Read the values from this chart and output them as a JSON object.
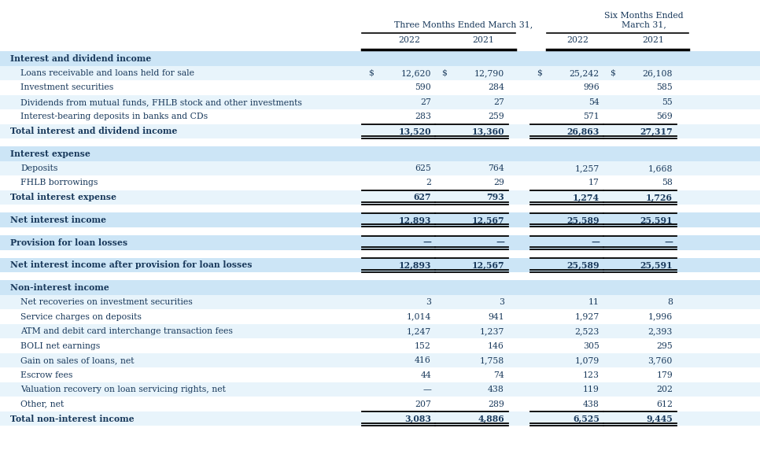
{
  "rows": [
    {
      "label": "Interest and dividend income",
      "values": [
        "",
        "",
        "",
        ""
      ],
      "style": "section_header",
      "bg": "#cce5f6"
    },
    {
      "label": "Loans receivable and loans held for sale",
      "values": [
        "12,620",
        "12,790",
        "25,242",
        "26,108"
      ],
      "dollar": [
        true,
        true,
        true,
        true
      ],
      "style": "data",
      "bg": "#e8f4fb"
    },
    {
      "label": "Investment securities",
      "values": [
        "590",
        "284",
        "996",
        "585"
      ],
      "dollar": [
        false,
        false,
        false,
        false
      ],
      "style": "data",
      "bg": "#ffffff"
    },
    {
      "label": "Dividends from mutual funds, FHLB stock and other investments",
      "values": [
        "27",
        "27",
        "54",
        "55"
      ],
      "dollar": [
        false,
        false,
        false,
        false
      ],
      "style": "data",
      "bg": "#e8f4fb"
    },
    {
      "label": "Interest-bearing deposits in banks and CDs",
      "values": [
        "283",
        "259",
        "571",
        "569"
      ],
      "dollar": [
        false,
        false,
        false,
        false
      ],
      "style": "data",
      "bg": "#ffffff"
    },
    {
      "label": "Total interest and dividend income",
      "values": [
        "13,520",
        "13,360",
        "26,863",
        "27,317"
      ],
      "dollar": [
        false,
        false,
        false,
        false
      ],
      "style": "total",
      "bg": "#e8f4fb"
    },
    {
      "label": "",
      "values": [
        "",
        "",
        "",
        ""
      ],
      "style": "spacer",
      "bg": "#ffffff"
    },
    {
      "label": "Interest expense",
      "values": [
        "",
        "",
        "",
        ""
      ],
      "style": "section_header",
      "bg": "#cce5f6"
    },
    {
      "label": "Deposits",
      "values": [
        "625",
        "764",
        "1,257",
        "1,668"
      ],
      "dollar": [
        false,
        false,
        false,
        false
      ],
      "style": "data",
      "bg": "#e8f4fb"
    },
    {
      "label": "FHLB borrowings",
      "values": [
        "2",
        "29",
        "17",
        "58"
      ],
      "dollar": [
        false,
        false,
        false,
        false
      ],
      "style": "data",
      "bg": "#ffffff"
    },
    {
      "label": "Total interest expense",
      "values": [
        "627",
        "793",
        "1,274",
        "1,726"
      ],
      "dollar": [
        false,
        false,
        false,
        false
      ],
      "style": "total",
      "bg": "#e8f4fb"
    },
    {
      "label": "",
      "values": [
        "",
        "",
        "",
        ""
      ],
      "style": "spacer",
      "bg": "#ffffff"
    },
    {
      "label": "Net interest income",
      "values": [
        "12,893",
        "12,567",
        "25,589",
        "25,591"
      ],
      "dollar": [
        false,
        false,
        false,
        false
      ],
      "style": "subtotal",
      "bg": "#cce5f6"
    },
    {
      "label": "",
      "values": [
        "",
        "",
        "",
        ""
      ],
      "style": "spacer",
      "bg": "#ffffff"
    },
    {
      "label": "Provision for loan losses",
      "values": [
        "—",
        "—",
        "—",
        "—"
      ],
      "dollar": [
        false,
        false,
        false,
        false
      ],
      "style": "subtotal",
      "bg": "#cce5f6"
    },
    {
      "label": "",
      "values": [
        "",
        "",
        "",
        ""
      ],
      "style": "spacer",
      "bg": "#ffffff"
    },
    {
      "label": "Net interest income after provision for loan losses",
      "values": [
        "12,893",
        "12,567",
        "25,589",
        "25,591"
      ],
      "dollar": [
        false,
        false,
        false,
        false
      ],
      "style": "subtotal",
      "bg": "#cce5f6"
    },
    {
      "label": "",
      "values": [
        "",
        "",
        "",
        ""
      ],
      "style": "spacer",
      "bg": "#ffffff"
    },
    {
      "label": "Non-interest income",
      "values": [
        "",
        "",
        "",
        ""
      ],
      "style": "section_header",
      "bg": "#cce5f6"
    },
    {
      "label": "Net recoveries on investment securities",
      "values": [
        "3",
        "3",
        "11",
        "8"
      ],
      "dollar": [
        false,
        false,
        false,
        false
      ],
      "style": "data",
      "bg": "#e8f4fb"
    },
    {
      "label": "Service charges on deposits",
      "values": [
        "1,014",
        "941",
        "1,927",
        "1,996"
      ],
      "dollar": [
        false,
        false,
        false,
        false
      ],
      "style": "data",
      "bg": "#ffffff"
    },
    {
      "label": "ATM and debit card interchange transaction fees",
      "values": [
        "1,247",
        "1,237",
        "2,523",
        "2,393"
      ],
      "dollar": [
        false,
        false,
        false,
        false
      ],
      "style": "data",
      "bg": "#e8f4fb"
    },
    {
      "label": "BOLI net earnings",
      "values": [
        "152",
        "146",
        "305",
        "295"
      ],
      "dollar": [
        false,
        false,
        false,
        false
      ],
      "style": "data",
      "bg": "#ffffff"
    },
    {
      "label": "Gain on sales of loans, net",
      "values": [
        "416",
        "1,758",
        "1,079",
        "3,760"
      ],
      "dollar": [
        false,
        false,
        false,
        false
      ],
      "style": "data",
      "bg": "#e8f4fb"
    },
    {
      "label": "Escrow fees",
      "values": [
        "44",
        "74",
        "123",
        "179"
      ],
      "dollar": [
        false,
        false,
        false,
        false
      ],
      "style": "data",
      "bg": "#ffffff"
    },
    {
      "label": "Valuation recovery on loan servicing rights, net",
      "values": [
        "—",
        "438",
        "119",
        "202"
      ],
      "dollar": [
        false,
        false,
        false,
        false
      ],
      "style": "data",
      "bg": "#e8f4fb"
    },
    {
      "label": "Other, net",
      "values": [
        "207",
        "289",
        "438",
        "612"
      ],
      "dollar": [
        false,
        false,
        false,
        false
      ],
      "style": "data",
      "bg": "#ffffff"
    },
    {
      "label": "Total non-interest income",
      "values": [
        "3,083",
        "4,886",
        "6,525",
        "9,445"
      ],
      "dollar": [
        false,
        false,
        false,
        false
      ],
      "style": "total",
      "bg": "#e8f4fb"
    }
  ],
  "text_color": "#1a3a5c",
  "font_size": 7.8,
  "header_font_size": 7.8,
  "bg_color": "#ffffff",
  "indent_labels": [
    "Loans receivable and loans held for sale",
    "Investment securities",
    "Dividends from mutual funds, FHLB stock and other investments",
    "Interest-bearing deposits in banks and CDs",
    "Deposits",
    "FHLB borrowings",
    "Net recoveries on investment securities",
    "Service charges on deposits",
    "ATM and debit card interchange transaction fees",
    "BOLI net earnings",
    "Gain on sales of loans, net",
    "Escrow fees",
    "Valuation recovery on loan servicing rights, net",
    "Other, net"
  ]
}
